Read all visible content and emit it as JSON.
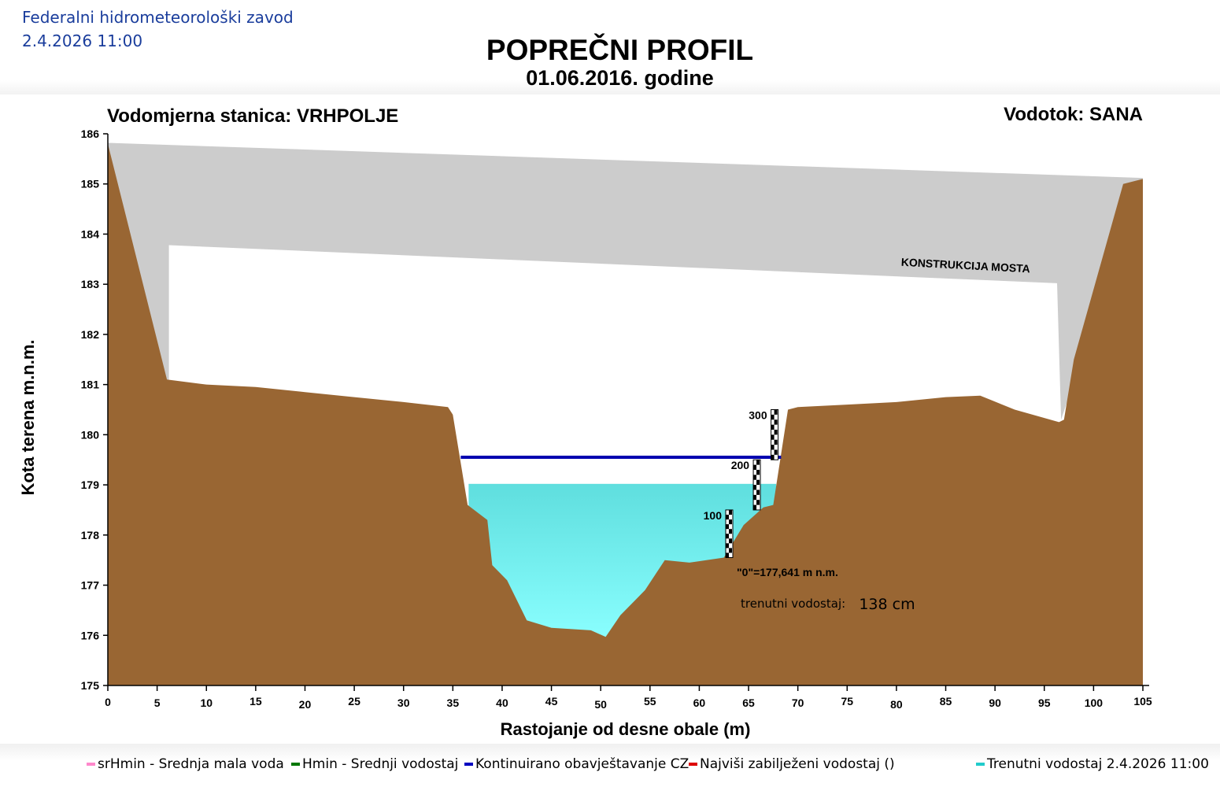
{
  "header": {
    "organization": "Federalni hidrometeorološki zavod",
    "datetime": "2.4.2026 11:00",
    "title": "POPREČNI PROFIL",
    "subtitle": "01.06.2016. godine",
    "station": "Vodomjerna stanica: VRHPOLJE",
    "river": "Vodotok: SANA"
  },
  "colors": {
    "terrain": "#996633",
    "bridge": "#cccccc",
    "water_top": "#5fdede",
    "water_bottom": "#8affff",
    "cz_line": "#0000b0"
  },
  "chart_data": {
    "type": "area",
    "xlabel": "Rastojanje od desne obale (m)",
    "ylabel": "Kota terena m.n.m.",
    "xlim": [
      0,
      105
    ],
    "ylim": [
      175,
      186
    ],
    "x_ticks": [
      0,
      5,
      10,
      15,
      20,
      25,
      30,
      35,
      40,
      45,
      50,
      55,
      60,
      65,
      70,
      75,
      80,
      85,
      90,
      95,
      100,
      105
    ],
    "y_ticks": [
      175,
      176,
      177,
      178,
      179,
      180,
      181,
      182,
      183,
      184,
      185,
      186
    ],
    "terrain_profile": [
      [
        0,
        185.8
      ],
      [
        6,
        181.1
      ],
      [
        10,
        181.0
      ],
      [
        15,
        180.95
      ],
      [
        20,
        180.85
      ],
      [
        25,
        180.75
      ],
      [
        30,
        180.65
      ],
      [
        34.5,
        180.55
      ],
      [
        35,
        180.4
      ],
      [
        36.5,
        178.6
      ],
      [
        38.5,
        178.3
      ],
      [
        39,
        177.4
      ],
      [
        40.5,
        177.1
      ],
      [
        42.5,
        176.3
      ],
      [
        45,
        176.15
      ],
      [
        49,
        176.1
      ],
      [
        50.5,
        175.97
      ],
      [
        52,
        176.4
      ],
      [
        54.5,
        176.9
      ],
      [
        56.5,
        177.5
      ],
      [
        59,
        177.45
      ],
      [
        62.5,
        177.55
      ],
      [
        64.5,
        178.2
      ],
      [
        66.5,
        178.55
      ],
      [
        67.5,
        178.6
      ],
      [
        69,
        180.5
      ],
      [
        70,
        180.55
      ],
      [
        75,
        180.6
      ],
      [
        80,
        180.65
      ],
      [
        85,
        180.75
      ],
      [
        88.5,
        180.78
      ],
      [
        92,
        180.5
      ],
      [
        96.5,
        180.25
      ],
      [
        97,
        180.3
      ],
      [
        98,
        181.5
      ],
      [
        103,
        185.0
      ],
      [
        105,
        185.1
      ]
    ],
    "bridge_deck": {
      "top": [
        [
          0,
          185.82
        ],
        [
          105,
          185.12
        ]
      ],
      "bottom": [
        [
          6.2,
          183.78
        ],
        [
          96.3,
          183.02
        ]
      ],
      "left_support": [
        [
          0,
          185.82
        ],
        [
          6.2,
          183.78
        ],
        [
          6.2,
          181.1
        ]
      ],
      "right_support": [
        [
          105,
          185.12
        ],
        [
          96.3,
          183.02
        ],
        [
          96.7,
          180.3
        ]
      ],
      "label": "KONSTRUKCIJA MOSTA",
      "label_at": [
        87,
        183.3
      ]
    },
    "water_level": {
      "elevation": 179.02,
      "x_range": [
        36.6,
        67.8
      ],
      "label_prefix": "trenutni vodostaj:",
      "value": "138 cm"
    },
    "cz_line": {
      "elevation": 179.55,
      "x_range": [
        35.8,
        68.3
      ]
    },
    "gauge": {
      "zero_label": "\"0\"=177,641 m n.m.",
      "staffs": [
        {
          "label": "100",
          "x": 63,
          "bottom": 177.55,
          "top": 178.5
        },
        {
          "label": "200",
          "x": 65.8,
          "bottom": 178.5,
          "top": 179.5
        },
        {
          "label": "300",
          "x": 67.6,
          "bottom": 179.5,
          "top": 180.5
        }
      ]
    }
  },
  "legend": [
    {
      "label": "srHmin - Srednja mala voda",
      "color": "#ff88cc"
    },
    {
      "label": "Hmin - Srednji vodostaj",
      "color": "#007700"
    },
    {
      "label": "Kontinuirano obavještavanje CZ",
      "color": "#0000c0"
    },
    {
      "label": "Najviši zabilježeni vodostaj ()",
      "color": "#dd0000"
    },
    {
      "label": "Trenutni vodostaj 2.4.2026 11:00",
      "color": "#22cccc"
    }
  ]
}
